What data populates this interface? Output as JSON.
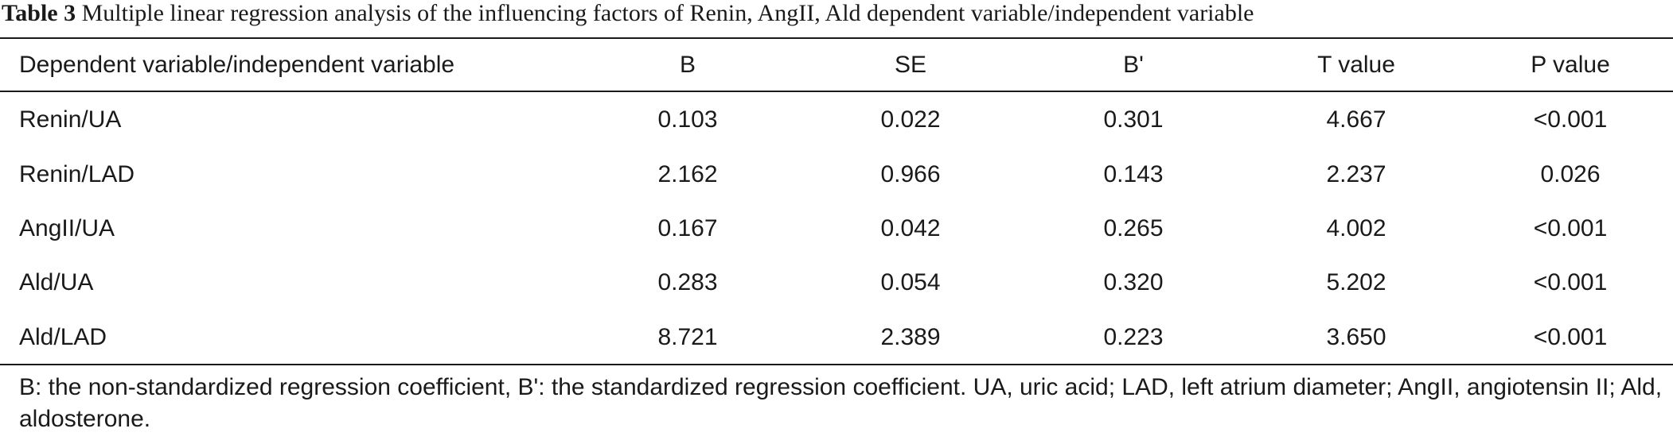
{
  "caption": {
    "label": "Table 3",
    "text": "Multiple linear regression analysis of the influencing factors of Renin, AngII, Ald dependent variable/independent variable"
  },
  "table": {
    "headers": [
      "Dependent variable/independent variable",
      "B",
      "SE",
      "B'",
      "T value",
      "P value"
    ],
    "rows": [
      [
        "Renin/UA",
        "0.103",
        "0.022",
        "0.301",
        "4.667",
        "<0.001"
      ],
      [
        "Renin/LAD",
        "2.162",
        "0.966",
        "0.143",
        "2.237",
        "0.026"
      ],
      [
        "AngII/UA",
        "0.167",
        "0.042",
        "0.265",
        "4.002",
        "<0.001"
      ],
      [
        "Ald/UA",
        "0.283",
        "0.054",
        "0.320",
        "5.202",
        "<0.001"
      ],
      [
        "Ald/LAD",
        "8.721",
        "2.389",
        "0.223",
        "3.650",
        "<0.001"
      ]
    ]
  },
  "footnote": "B: the non-standardized regression coefficient, B': the standardized regression coefficient. UA, uric acid; LAD, left atrium diameter; AngII, angiotensin II; Ald, aldosterone."
}
